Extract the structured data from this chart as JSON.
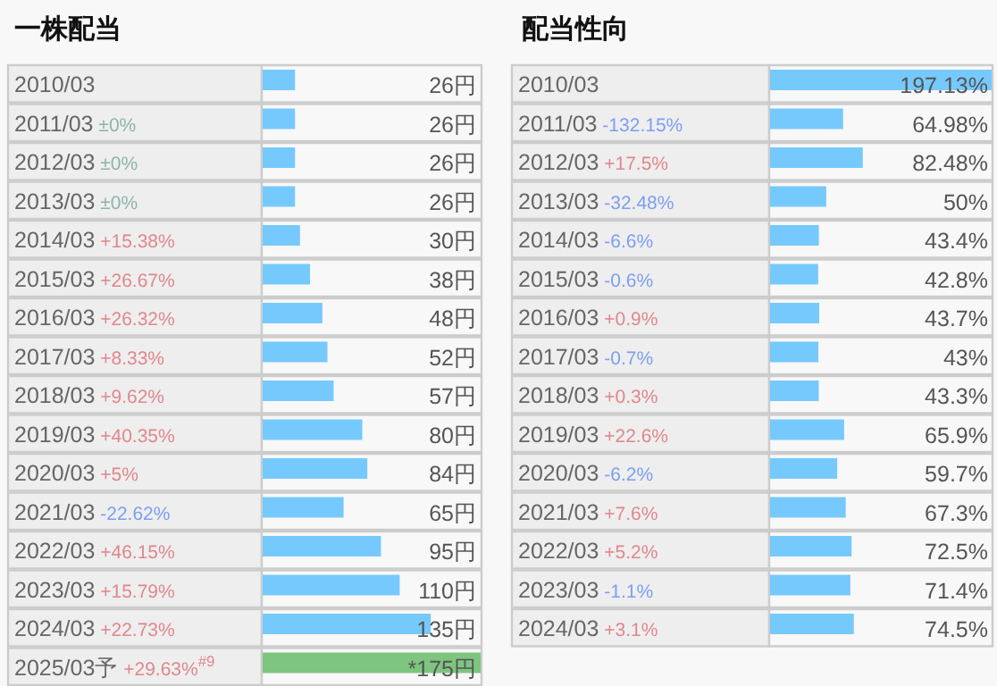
{
  "chart_data": [
    {
      "type": "bar",
      "orientation": "horizontal",
      "title": "一株配当",
      "categories": [
        "2010/03",
        "2011/03 ±0%",
        "2012/03 ±0%",
        "2013/03 ±0%",
        "2014/03 +15.38%",
        "2015/03 +26.67%",
        "2016/03 +26.32%",
        "2017/03 +8.33%",
        "2018/03 +9.62%",
        "2019/03 +40.35%",
        "2020/03 +5%",
        "2021/03 -22.62%",
        "2022/03 +46.15%",
        "2023/03 +15.79%",
        "2024/03 +22.73%",
        "2025/03予 +29.63%$^{#9}$"
      ],
      "values": [
        26,
        26,
        26,
        26,
        30,
        38,
        48,
        52,
        57,
        80,
        84,
        65,
        95,
        110,
        135,
        175
      ],
      "colors": [
        "#76c9fc",
        "#76c9fc",
        "#76c9fc",
        "#76c9fc",
        "#76c9fc",
        "#76c9fc",
        "#76c9fc",
        "#76c9fc",
        "#76c9fc",
        "#76c9fc",
        "#76c9fc",
        "#76c9fc",
        "#76c9fc",
        "#76c9fc",
        "#76c9fc",
        "#7ec57f"
      ],
      "value_labels": [
        "26円",
        "26円",
        "26円",
        "26円",
        "30円",
        "38円",
        "48円",
        "52円",
        "57円",
        "80円",
        "84円",
        "65円",
        "95円",
        "110円",
        "135円",
        "*175円"
      ]
    },
    {
      "type": "bar",
      "orientation": "horizontal",
      "title": "配当性向",
      "categories": [
        "2010/03",
        "2011/03 -132.15%",
        "2012/03 +17.5%",
        "2013/03 -32.48%",
        "2014/03 -6.6%",
        "2015/03 -0.6%",
        "2016/03 +0.9%",
        "2017/03 -0.7%",
        "2018/03 +0.3%",
        "2019/03 +22.6%",
        "2020/03 -6.2%",
        "2021/03 +7.6%",
        "2022/03 +5.2%",
        "2023/03 -1.1%",
        "2024/03 +3.1%"
      ],
      "values": [
        197.13,
        64.98,
        82.48,
        50,
        43.4,
        42.8,
        43.7,
        43,
        43.3,
        65.9,
        59.7,
        67.3,
        72.5,
        71.4,
        74.5
      ],
      "color": "#76c9fc",
      "value_labels": [
        "197.13%",
        "64.98%",
        "82.48%",
        "50%",
        "43.4%",
        "42.8%",
        "43.7%",
        "43%",
        "43.3%",
        "65.9%",
        "59.7%",
        "67.3%",
        "72.5%",
        "71.4%",
        "74.5%"
      ]
    }
  ]
}
